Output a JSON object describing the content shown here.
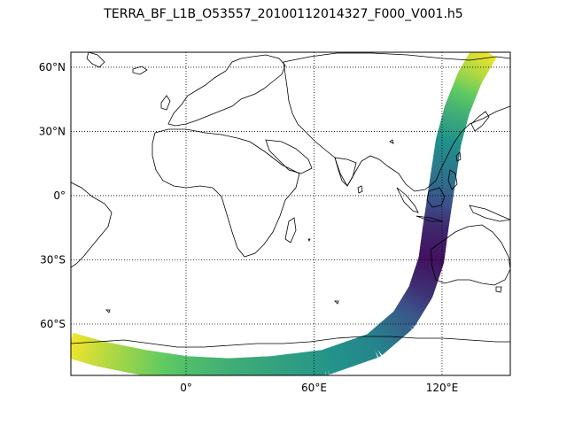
{
  "title": "TERRA_BF_L1B_O53557_20100112014327_F000_V001.h5",
  "map": {
    "projection": "cylindrical",
    "lon_range": [
      -54,
      152
    ],
    "lat_range": [
      -84,
      67
    ],
    "gridline_style": "dotted",
    "meridians": [
      {
        "lon": 0,
        "label": "0°"
      },
      {
        "lon": 60,
        "label": "60°E"
      },
      {
        "lon": 120,
        "label": "120°E"
      }
    ],
    "parallels": [
      {
        "lat": 60,
        "label": "60°N"
      },
      {
        "lat": 30,
        "label": "30°N"
      },
      {
        "lat": 0,
        "label": "0°"
      },
      {
        "lat": -30,
        "label": "30°S"
      },
      {
        "lat": -60,
        "label": "60°S"
      }
    ],
    "coastline_color": "#000000"
  },
  "swath": {
    "colormap": "viridis",
    "colormap_stops": [
      "#440154",
      "#3b528b",
      "#21918c",
      "#5ec962",
      "#fde725"
    ],
    "path": [
      {
        "lon": 140,
        "lat": 67,
        "c": 0.98
      },
      {
        "lon": 133,
        "lat": 55,
        "c": 0.85
      },
      {
        "lon": 127,
        "lat": 40,
        "c": 0.65
      },
      {
        "lon": 123,
        "lat": 25,
        "c": 0.5
      },
      {
        "lon": 120,
        "lat": 5,
        "c": 0.35
      },
      {
        "lon": 117,
        "lat": -15,
        "c": 0.12
      },
      {
        "lon": 115,
        "lat": -30,
        "c": 0.05
      },
      {
        "lon": 110,
        "lat": -45,
        "c": 0.15
      },
      {
        "lon": 102,
        "lat": -58,
        "c": 0.3
      },
      {
        "lon": 88,
        "lat": -70,
        "c": 0.45
      },
      {
        "lon": 65,
        "lat": -78,
        "c": 0.52
      },
      {
        "lon": 40,
        "lat": -81,
        "c": 0.58
      },
      {
        "lon": 20,
        "lat": -82,
        "c": 0.63
      },
      {
        "lon": 0,
        "lat": -81,
        "c": 0.7
      },
      {
        "lon": -20,
        "lat": -78,
        "c": 0.8
      },
      {
        "lon": -40,
        "lat": -74,
        "c": 0.9
      },
      {
        "lon": -54,
        "lat": -70,
        "c": 0.98
      }
    ],
    "half_width_deg": 6
  }
}
